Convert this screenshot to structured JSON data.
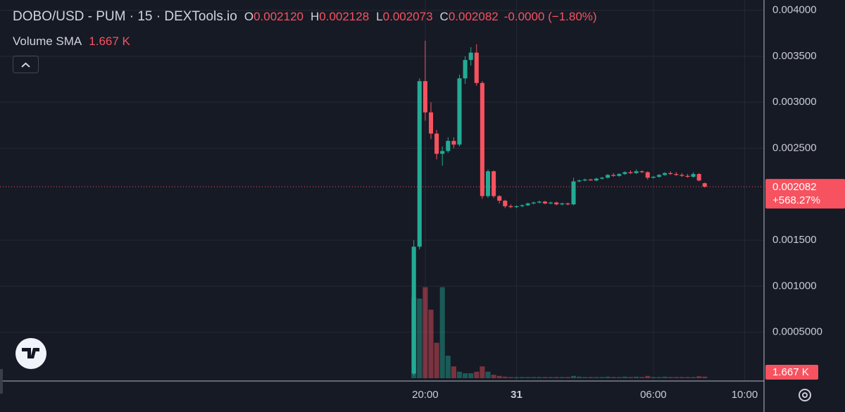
{
  "chart_data": {
    "type": "candlestick",
    "title": "DOBO/USD - PUM · 15 · DEXTools.io",
    "ohlc_legend": [
      {
        "key": "O",
        "value": "0.002120"
      },
      {
        "key": "H",
        "value": "0.002128"
      },
      {
        "key": "L",
        "value": "0.002073"
      },
      {
        "key": "C",
        "value": "0.002082"
      }
    ],
    "change": "-0.0000 (−1.80%)",
    "volume_label": "Volume SMA",
    "volume_sma": {
      "value": 1.667,
      "label": "1.667 K"
    },
    "x": [
      19.5,
      19.75,
      20,
      20.25,
      20.5,
      20.75,
      21,
      21.25,
      21.5,
      21.75,
      22,
      22.25,
      22.5,
      22.75,
      23,
      23.25,
      23.5,
      23.75,
      24,
      24.25,
      24.5,
      24.75,
      25,
      25.25,
      25.5,
      25.75,
      26,
      26.25,
      26.5,
      26.75,
      27,
      27.25,
      27.5,
      27.75,
      28,
      28.25,
      28.5,
      28.75,
      29,
      29.25,
      29.5,
      29.75,
      30,
      30.25,
      30.5,
      30.75,
      31,
      31.25,
      31.5,
      31.75,
      32,
      32.25
    ],
    "open": [
      5e-05,
      0.00143,
      0.00323,
      0.00289,
      0.00266,
      0.00244,
      0.00247,
      0.00258,
      0.00254,
      0.00326,
      0.00346,
      0.00354,
      0.00321,
      0.00198,
      0.00225,
      0.00198,
      0.00193,
      0.00187,
      0.00186,
      0.00187,
      0.00188,
      0.0019,
      0.00191,
      0.00192,
      0.0019,
      0.00191,
      0.00189,
      0.0019,
      0.00189,
      0.00214,
      0.00215,
      0.00216,
      0.00215,
      0.00217,
      0.00218,
      0.00221,
      0.0022,
      0.00222,
      0.00224,
      0.00223,
      0.00225,
      0.00224,
      0.00218,
      0.00219,
      0.00221,
      0.00223,
      0.00222,
      0.00221,
      0.0022,
      0.00219,
      0.00222,
      0.00212
    ],
    "high": [
      0.0015,
      0.00326,
      0.00367,
      0.003,
      0.0027,
      0.00252,
      0.00262,
      0.00262,
      0.0033,
      0.0035,
      0.0036,
      0.00363,
      0.00323,
      0.00227,
      0.00226,
      0.00199,
      0.00194,
      0.00189,
      0.00188,
      0.00189,
      0.00191,
      0.00192,
      0.00193,
      0.00193,
      0.00192,
      0.00192,
      0.00191,
      0.00191,
      0.00218,
      0.00216,
      0.00217,
      0.00217,
      0.00218,
      0.00219,
      0.00222,
      0.00223,
      0.00223,
      0.00225,
      0.00226,
      0.00227,
      0.00226,
      0.00225,
      0.0022,
      0.00222,
      0.00224,
      0.00225,
      0.00224,
      0.00223,
      0.00222,
      0.00224,
      0.00223,
      0.002128
    ],
    "low": [
      3e-05,
      0.0014,
      0.0028,
      0.0026,
      0.00238,
      0.00231,
      0.00245,
      0.0025,
      0.00252,
      0.0032,
      0.0034,
      0.00318,
      0.00195,
      0.00196,
      0.00196,
      0.0019,
      0.00185,
      0.00185,
      0.00185,
      0.00186,
      0.00187,
      0.00189,
      0.0019,
      0.00189,
      0.00189,
      0.00188,
      0.00188,
      0.00188,
      0.00188,
      0.00213,
      0.00214,
      0.00215,
      0.00214,
      0.00216,
      0.00217,
      0.00219,
      0.00219,
      0.00221,
      0.00222,
      0.00222,
      0.00223,
      0.00216,
      0.00217,
      0.00218,
      0.0022,
      0.00221,
      0.0022,
      0.00219,
      0.00218,
      0.00218,
      0.00214,
      0.002073
    ],
    "close": [
      0.00143,
      0.00323,
      0.00289,
      0.00266,
      0.00244,
      0.00247,
      0.00258,
      0.00254,
      0.00326,
      0.00346,
      0.00354,
      0.00321,
      0.00198,
      0.00225,
      0.00198,
      0.00193,
      0.00187,
      0.00186,
      0.00187,
      0.00188,
      0.0019,
      0.00191,
      0.00192,
      0.0019,
      0.00191,
      0.00189,
      0.0019,
      0.00189,
      0.00214,
      0.00215,
      0.00216,
      0.00215,
      0.00217,
      0.00218,
      0.00221,
      0.0022,
      0.00222,
      0.00224,
      0.00223,
      0.00225,
      0.00224,
      0.00218,
      0.00219,
      0.00221,
      0.00223,
      0.00222,
      0.00221,
      0.0022,
      0.00219,
      0.00222,
      0.00215,
      0.002082
    ],
    "volume": [
      21.3,
      20.9,
      23.9,
      18.0,
      9.3,
      23.9,
      5.9,
      3.1,
      1.7,
      1.3,
      1.3,
      1.7,
      3.1,
      1.7,
      0.9,
      0.6,
      0.4,
      0.3,
      0.3,
      0.3,
      0.3,
      0.3,
      0.3,
      0.3,
      0.3,
      0.3,
      0.3,
      0.3,
      0.6,
      0.4,
      0.3,
      0.3,
      0.3,
      0.3,
      0.4,
      0.3,
      0.3,
      0.4,
      0.3,
      0.4,
      0.3,
      0.6,
      0.3,
      0.3,
      0.4,
      0.3,
      0.3,
      0.3,
      0.3,
      0.3,
      0.5,
      0.4
    ],
    "xlim": [
      1.36,
      34.85
    ],
    "xticks": [
      {
        "value": 20,
        "label": "20:00"
      },
      {
        "value": 24,
        "label": "31"
      },
      {
        "value": 30,
        "label": "06:00"
      },
      {
        "value": 34,
        "label": "10:00"
      }
    ],
    "ylim": [
      0,
      0.0041
    ],
    "yticks": [
      {
        "value": 0.0005,
        "label": "0.0005000"
      },
      {
        "value": 0.001,
        "label": "0.001000"
      },
      {
        "value": 0.0015,
        "label": "0.001500"
      },
      {
        "value": 0.0025,
        "label": "0.002500"
      },
      {
        "value": 0.003,
        "label": "0.003000"
      },
      {
        "value": 0.0035,
        "label": "0.003500"
      },
      {
        "value": 0.004,
        "label": "0.004000"
      }
    ],
    "vlim": [
      0,
      27
    ],
    "last_price": {
      "value": 0.002082,
      "label": "0.002082"
    },
    "last_change": "+568.27%",
    "up_color": "#22ab94",
    "down_color": "#f7525f",
    "grid": true
  }
}
